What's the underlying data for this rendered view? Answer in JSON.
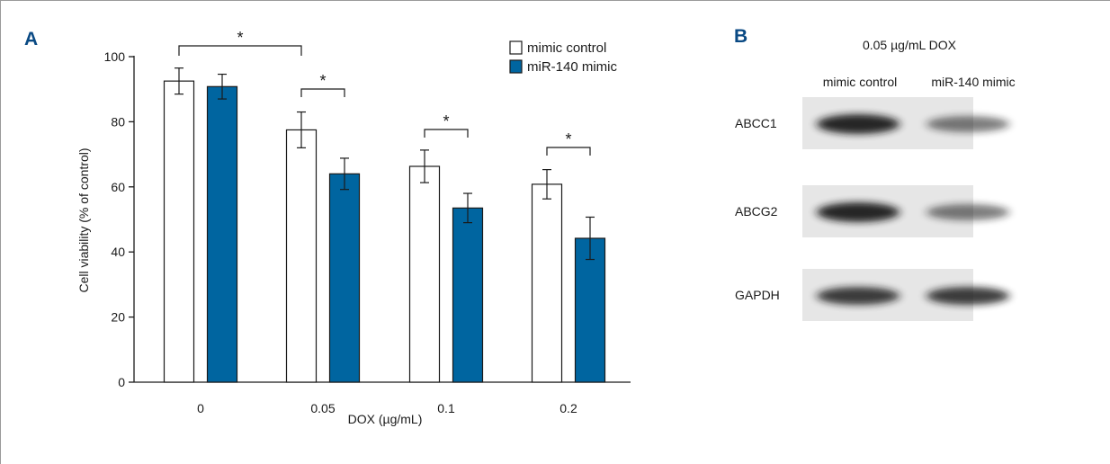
{
  "colors": {
    "accent": "#0a4a84",
    "series_control": "#ffffff",
    "series_mimic": "#0065a0",
    "axis": "#1a1a1a",
    "blot_background": "#e6e6e6"
  },
  "panel_a": {
    "label": "A"
  },
  "panel_b": {
    "label": "B",
    "condition": "0.05 µg/mL DOX",
    "lanes": [
      "mimic control",
      "miR-140 mimic"
    ],
    "proteins": [
      "ABCC1",
      "ABCG2",
      "GAPDH"
    ]
  },
  "chart_data": {
    "type": "bar",
    "xlabel": "DOX (µg/mL)",
    "ylabel": "Cell viability (% of control)",
    "ylim": [
      0,
      100
    ],
    "yticks": [
      0,
      20,
      40,
      60,
      80,
      100
    ],
    "categories": [
      "0",
      "0.05",
      "0.1",
      "0.2"
    ],
    "series": [
      {
        "name": "mimic control",
        "color": "#ffffff",
        "values": [
          92.5,
          77.5,
          66.3,
          60.8
        ],
        "errors": [
          4.0,
          5.5,
          5.0,
          4.5
        ]
      },
      {
        "name": "miR-140 mimic",
        "color": "#0065a0",
        "values": [
          90.8,
          64.0,
          53.5,
          44.2
        ],
        "errors": [
          3.8,
          4.8,
          4.5,
          6.5
        ]
      }
    ],
    "significance": [
      {
        "category": "0",
        "compare": "0.05",
        "label": "*"
      },
      {
        "category": "0.05",
        "label": "*"
      },
      {
        "category": "0.1",
        "label": "*"
      },
      {
        "category": "0.2",
        "label": "*"
      }
    ],
    "legend_position": "top-right",
    "grid": false
  }
}
